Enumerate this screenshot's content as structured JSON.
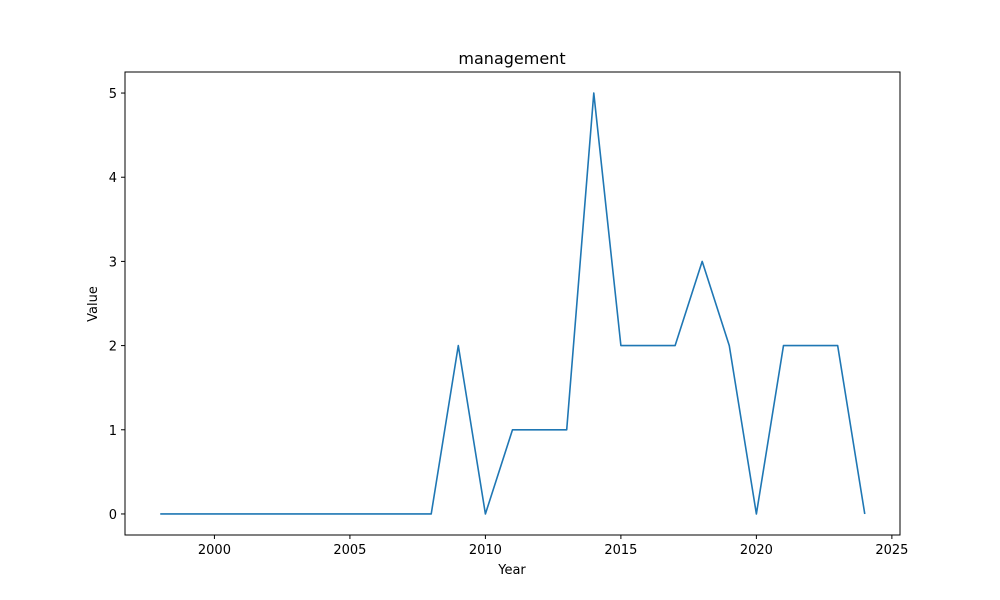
{
  "chart_data": {
    "type": "line",
    "title": "management",
    "xlabel": "Year",
    "ylabel": "Value",
    "xlim": [
      1996.7,
      2025.3
    ],
    "ylim": [
      -0.25,
      5.25
    ],
    "xticks": [
      2000,
      2005,
      2010,
      2015,
      2020,
      2025
    ],
    "yticks": [
      0,
      1,
      2,
      3,
      4,
      5
    ],
    "grid": false,
    "colors": {
      "line": "#1f77b4"
    },
    "series": [
      {
        "x": [
          1998,
          1999,
          2000,
          2001,
          2002,
          2003,
          2004,
          2005,
          2006,
          2007,
          2008,
          2009,
          2010,
          2011,
          2012,
          2013,
          2014,
          2015,
          2016,
          2017,
          2018,
          2019,
          2020,
          2021,
          2022,
          2023,
          2024
        ],
        "values": [
          0,
          0,
          0,
          0,
          0,
          0,
          0,
          0,
          0,
          0,
          0,
          2,
          0,
          1,
          1,
          1,
          5,
          2,
          2,
          2,
          3,
          2,
          0,
          2,
          2,
          2,
          0
        ]
      }
    ]
  }
}
